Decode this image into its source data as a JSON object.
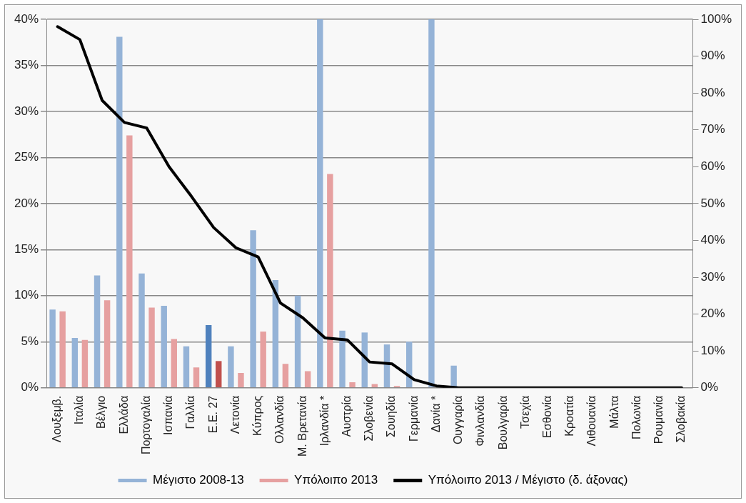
{
  "chart_data": {
    "type": "bar",
    "categories": [
      "Λουξεμβ.",
      "Ιταλία",
      "Βέλγιο",
      "Ελλάδα",
      "Πορτογαλία",
      "Ισπανία",
      "Γαλλία",
      "Ε.Ε. 27",
      "Λετονία",
      "Κύπρος",
      "Ολλανδία",
      "Μ. Βρετανία",
      "Ιρλανδία *",
      "Αυστρία",
      "Σλοβενία",
      "Σουηδία",
      "Γερμανία",
      "Δανία *",
      "Ουγγαρία",
      "Φινλανδία",
      "Βουλγαρία",
      "Τσεχία",
      "Εσθονία",
      "Κροατία",
      "Λιθουανία",
      "Μάλτα",
      "Πολωνία",
      "Ρουμανία",
      "Σλοβακία"
    ],
    "series": [
      {
        "name": "Μέγιστο 2008-13",
        "color": "#95b3d7",
        "colors": [
          "#95b3d7",
          "#95b3d7",
          "#95b3d7",
          "#95b3d7",
          "#95b3d7",
          "#95b3d7",
          "#95b3d7",
          "#4f81bd",
          "#95b3d7",
          "#95b3d7",
          "#95b3d7",
          "#95b3d7",
          "#95b3d7",
          "#95b3d7",
          "#95b3d7",
          "#95b3d7",
          "#95b3d7",
          "#95b3d7",
          "#95b3d7",
          "#95b3d7",
          "#95b3d7",
          "#95b3d7",
          "#95b3d7",
          "#95b3d7",
          "#95b3d7",
          "#95b3d7",
          "#95b3d7",
          "#95b3d7",
          "#95b3d7"
        ],
        "values": [
          8.5,
          5.4,
          12.2,
          38.1,
          12.4,
          8.9,
          4.5,
          6.8,
          4.5,
          17.1,
          11.7,
          10.0,
          40,
          6.2,
          6.0,
          4.7,
          5.0,
          40,
          2.4,
          0,
          0,
          0,
          0,
          0,
          0,
          0,
          0,
          0,
          0
        ]
      },
      {
        "name": "Υπόλοιπο 2013",
        "color": "#e6a0a0",
        "colors": [
          "#e6a0a0",
          "#e6a0a0",
          "#e6a0a0",
          "#e6a0a0",
          "#e6a0a0",
          "#e6a0a0",
          "#e6a0a0",
          "#c0504d",
          "#e6a0a0",
          "#e6a0a0",
          "#e6a0a0",
          "#e6a0a0",
          "#e6a0a0",
          "#e6a0a0",
          "#e6a0a0",
          "#e6a0a0",
          "#e6a0a0",
          "#e6a0a0",
          "#e6a0a0",
          "#e6a0a0",
          "#e6a0a0",
          "#e6a0a0",
          "#e6a0a0",
          "#e6a0a0",
          "#e6a0a0",
          "#e6a0a0",
          "#e6a0a0",
          "#e6a0a0",
          "#e6a0a0"
        ],
        "values": [
          8.3,
          5.2,
          9.5,
          27.4,
          8.7,
          5.3,
          2.2,
          2.9,
          1.6,
          6.1,
          2.6,
          1.8,
          23.2,
          0.6,
          0.4,
          0.2,
          null,
          0,
          0,
          0,
          0,
          0,
          0,
          0,
          0,
          0,
          0,
          0,
          0
        ]
      },
      {
        "name": "Υπόλοιπο 2013 / Μέγιστο (δ. άξονας)",
        "type": "line",
        "axis": "y2",
        "color": "#000000",
        "values": [
          98,
          94.5,
          78,
          72,
          70.5,
          60,
          52,
          43.5,
          38,
          35.5,
          23,
          19,
          13.5,
          13,
          7,
          6.5,
          2.2,
          0.5,
          0,
          0,
          0,
          0,
          0,
          0,
          0,
          0,
          0,
          0,
          0
        ]
      }
    ],
    "ylim": [
      0,
      40
    ],
    "yticks": [
      {
        "value": 0,
        "label": "0%"
      },
      {
        "value": 5,
        "label": "5%"
      },
      {
        "value": 10,
        "label": "10%"
      },
      {
        "value": 15,
        "label": "15%"
      },
      {
        "value": 20,
        "label": "20%"
      },
      {
        "value": 25,
        "label": "25%"
      },
      {
        "value": 30,
        "label": "30%"
      },
      {
        "value": 35,
        "label": "35%"
      },
      {
        "value": 40,
        "label": "40%"
      }
    ],
    "y2lim": [
      0,
      100
    ],
    "y2ticks": [
      {
        "value": 0,
        "label": "0%"
      },
      {
        "value": 10,
        "label": "10%"
      },
      {
        "value": 20,
        "label": "20%"
      },
      {
        "value": 30,
        "label": "30%"
      },
      {
        "value": 40,
        "label": "40%"
      },
      {
        "value": 50,
        "label": "50%"
      },
      {
        "value": 60,
        "label": "60%"
      },
      {
        "value": 70,
        "label": "70%"
      },
      {
        "value": 80,
        "label": "80%"
      },
      {
        "value": 90,
        "label": "90%"
      },
      {
        "value": 100,
        "label": "100%"
      }
    ],
    "grid": "y",
    "legend": "bottom",
    "marker": "none",
    "line_style": "solid"
  }
}
